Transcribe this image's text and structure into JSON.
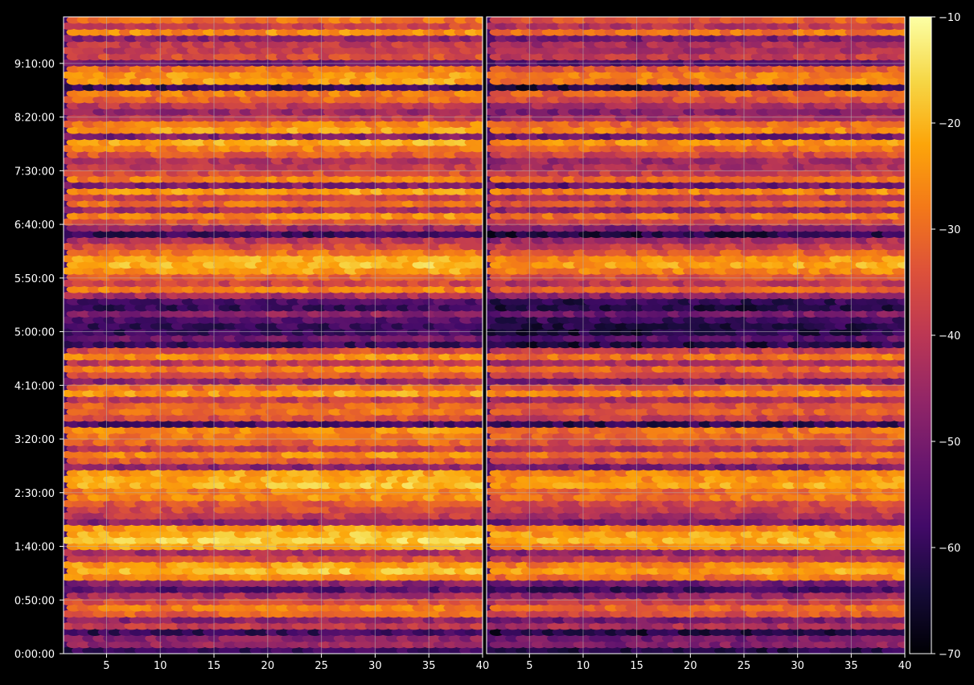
{
  "chart_data": {
    "type": "heatmap",
    "title": "",
    "xlabel": "",
    "ylabel": "",
    "colormap": "inferno",
    "background": "#000000",
    "grid": true,
    "marker": "hexbin",
    "panels": [
      {
        "name": "",
        "xlim": [
          1,
          40
        ],
        "x_ticks": [
          5,
          10,
          15,
          20,
          25,
          30,
          35,
          40
        ],
        "x_tick_labels": [
          "5",
          "10",
          "15",
          "20",
          "25",
          "30",
          "35",
          "40"
        ],
        "row_values": [
          -30,
          -38,
          -26,
          -48,
          -40,
          -40,
          -36,
          -52,
          -30,
          -25,
          -24,
          -60,
          -28,
          -32,
          -40,
          -46,
          -40,
          -28,
          -24,
          -50,
          -22,
          -28,
          -34,
          -42,
          -40,
          -36,
          -28,
          -50,
          -24,
          -38,
          -30,
          -44,
          -26,
          -34,
          -46,
          -60,
          -42,
          -36,
          -30,
          -22,
          -20,
          -24,
          -32,
          -38,
          -28,
          -44,
          -58,
          -60,
          -48,
          -56,
          -60,
          -60,
          -52,
          -60,
          -36,
          -26,
          -40,
          -28,
          -34,
          -48,
          -30,
          -24,
          -40,
          -32,
          -30,
          -36,
          -58,
          -26,
          -28,
          -32,
          -40,
          -26,
          -34,
          -48,
          -24,
          -22,
          -20,
          -28,
          -26,
          -34,
          -36,
          -40,
          -48,
          -24,
          -20,
          -18,
          -22,
          -44,
          -36,
          -24,
          -20,
          -26,
          -48,
          -56,
          -44,
          -36,
          -28,
          -32,
          -48,
          -40,
          -60,
          -48,
          -46,
          -60
        ],
        "row_trend": 0.18
      },
      {
        "name": "",
        "xlim": [
          1,
          40
        ],
        "x_ticks": [
          5,
          10,
          15,
          20,
          25,
          30,
          35,
          40
        ],
        "x_tick_labels": [
          "5",
          "10",
          "15",
          "20",
          "25",
          "30",
          "35",
          "40"
        ],
        "row_values": [
          -34,
          -42,
          -30,
          -52,
          -44,
          -44,
          -40,
          -56,
          -34,
          -29,
          -28,
          -64,
          -32,
          -36,
          -44,
          -50,
          -44,
          -32,
          -28,
          -54,
          -26,
          -32,
          -38,
          -46,
          -44,
          -40,
          -32,
          -54,
          -28,
          -42,
          -34,
          -48,
          -30,
          -38,
          -50,
          -64,
          -46,
          -40,
          -34,
          -26,
          -24,
          -28,
          -36,
          -42,
          -32,
          -48,
          -62,
          -64,
          -52,
          -60,
          -64,
          -64,
          -56,
          -64,
          -40,
          -30,
          -44,
          -32,
          -38,
          -52,
          -34,
          -28,
          -44,
          -36,
          -34,
          -40,
          -62,
          -30,
          -32,
          -36,
          -44,
          -30,
          -38,
          -52,
          -28,
          -26,
          -24,
          -32,
          -30,
          -38,
          -40,
          -44,
          -52,
          -28,
          -24,
          -22,
          -26,
          -48,
          -40,
          -28,
          -24,
          -30,
          -52,
          -60,
          -48,
          -40,
          -32,
          -36,
          -52,
          -44,
          -64,
          -52,
          -50,
          -64
        ],
        "row_trend": 0.28
      }
    ],
    "y_ticks_seconds": [
      0,
      3000,
      6000,
      9000,
      12000,
      15000,
      18000,
      21000,
      24000,
      27000,
      30000,
      33000
    ],
    "y_tick_labels": [
      "0:00:00",
      "0:50:00",
      "1:40:00",
      "2:30:00",
      "3:20:00",
      "4:10:00",
      "5:00:00",
      "5:50:00",
      "6:40:00",
      "7:30:00",
      "8:20:00",
      "9:10:00"
    ],
    "ylim_seconds": [
      0,
      35600
    ],
    "colorbar": {
      "range": [
        -70,
        -10
      ],
      "ticks": [
        -10,
        -20,
        -30,
        -40,
        -50,
        -60,
        -70
      ],
      "tick_labels": [
        "−10",
        "−20",
        "−30",
        "−40",
        "−50",
        "−60",
        "−70"
      ]
    }
  }
}
